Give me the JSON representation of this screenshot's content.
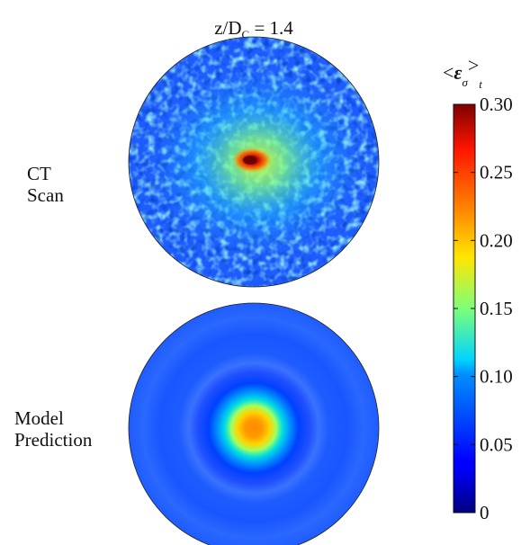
{
  "chart_data": {
    "type": "heatmap",
    "title": {
      "prefix": "z/D",
      "subscript": "C",
      "suffix": " = 1.4"
    },
    "panels": [
      {
        "label_lines": [
          "CT",
          "Scan"
        ],
        "kind": "measured",
        "peak_value": 0.3,
        "core_radius_fraction": 0.08,
        "halo_radius_fraction": 0.45,
        "background_value": 0.05
      },
      {
        "label_lines": [
          "Model",
          "Prediction"
        ],
        "kind": "model",
        "peak_value": 0.26,
        "core_radius_fraction": 0.3,
        "background_value": 0.04
      }
    ],
    "colorbar": {
      "label": {
        "open": "<",
        "symbol": "ε",
        "symbol_subscript": "σ",
        "close": ">",
        "outer_subscript": "t"
      },
      "colormap": "jet",
      "min": 0,
      "max": 0.3,
      "ticks": [
        "0",
        "0.05",
        "0.10",
        "0.15",
        "0.20",
        "0.25",
        "0.30"
      ],
      "tick_values": [
        0,
        0.05,
        0.1,
        0.15,
        0.2,
        0.25,
        0.3
      ]
    }
  }
}
